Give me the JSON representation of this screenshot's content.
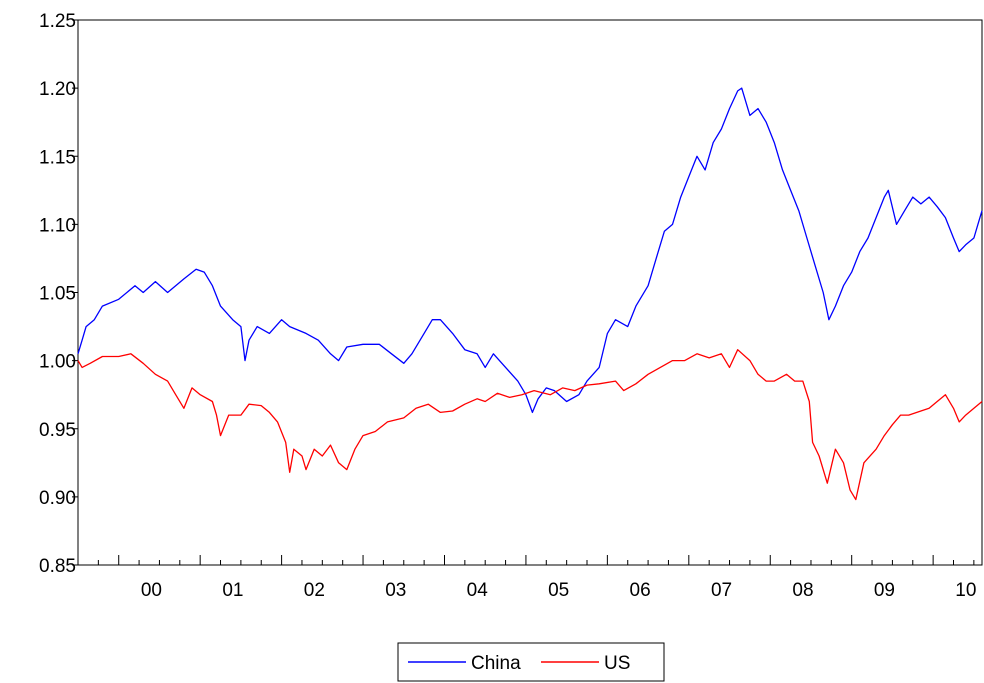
{
  "chart_data": {
    "type": "line",
    "title": "",
    "xlabel": "",
    "ylabel": "",
    "ylim": [
      0.85,
      1.25
    ],
    "yticks": [
      "0.85",
      "0.90",
      "0.95",
      "1.00",
      "1.05",
      "1.10",
      "1.15",
      "1.20",
      "1.25"
    ],
    "xlim": [
      1999.5,
      2010.6
    ],
    "xticks": [
      {
        "label": "00",
        "year": 2000
      },
      {
        "label": "01",
        "year": 2001
      },
      {
        "label": "02",
        "year": 2002
      },
      {
        "label": "03",
        "year": 2003
      },
      {
        "label": "04",
        "year": 2004
      },
      {
        "label": "05",
        "year": 2005
      },
      {
        "label": "06",
        "year": 2006
      },
      {
        "label": "07",
        "year": 2007
      },
      {
        "label": "08",
        "year": 2008
      },
      {
        "label": "09",
        "year": 2009
      },
      {
        "label": "10",
        "year": 2010
      }
    ],
    "legend_position": "bottom-center",
    "grid": false,
    "series": [
      {
        "name": "China",
        "color": "#0000ff",
        "points": [
          [
            1999.5,
            1.005
          ],
          [
            1999.55,
            1.015
          ],
          [
            1999.6,
            1.025
          ],
          [
            1999.7,
            1.03
          ],
          [
            1999.8,
            1.04
          ],
          [
            2000.0,
            1.045
          ],
          [
            2000.2,
            1.055
          ],
          [
            2000.3,
            1.05
          ],
          [
            2000.45,
            1.058
          ],
          [
            2000.6,
            1.05
          ],
          [
            2000.8,
            1.06
          ],
          [
            2000.95,
            1.067
          ],
          [
            2001.05,
            1.065
          ],
          [
            2001.15,
            1.055
          ],
          [
            2001.25,
            1.04
          ],
          [
            2001.4,
            1.03
          ],
          [
            2001.5,
            1.025
          ],
          [
            2001.55,
            1.0
          ],
          [
            2001.6,
            1.015
          ],
          [
            2001.7,
            1.025
          ],
          [
            2001.85,
            1.02
          ],
          [
            2002.0,
            1.03
          ],
          [
            2002.1,
            1.025
          ],
          [
            2002.3,
            1.02
          ],
          [
            2002.45,
            1.015
          ],
          [
            2002.6,
            1.005
          ],
          [
            2002.7,
            1.0
          ],
          [
            2002.8,
            1.01
          ],
          [
            2003.0,
            1.012
          ],
          [
            2003.2,
            1.012
          ],
          [
            2003.35,
            1.005
          ],
          [
            2003.5,
            0.998
          ],
          [
            2003.6,
            1.005
          ],
          [
            2003.75,
            1.02
          ],
          [
            2003.85,
            1.03
          ],
          [
            2003.95,
            1.03
          ],
          [
            2004.1,
            1.02
          ],
          [
            2004.25,
            1.008
          ],
          [
            2004.4,
            1.005
          ],
          [
            2004.5,
            0.995
          ],
          [
            2004.6,
            1.005
          ],
          [
            2004.75,
            0.995
          ],
          [
            2004.9,
            0.985
          ],
          [
            2005.0,
            0.975
          ],
          [
            2005.08,
            0.962
          ],
          [
            2005.15,
            0.972
          ],
          [
            2005.25,
            0.98
          ],
          [
            2005.35,
            0.978
          ],
          [
            2005.5,
            0.97
          ],
          [
            2005.65,
            0.975
          ],
          [
            2005.75,
            0.985
          ],
          [
            2005.9,
            0.995
          ],
          [
            2006.0,
            1.02
          ],
          [
            2006.1,
            1.03
          ],
          [
            2006.25,
            1.025
          ],
          [
            2006.35,
            1.04
          ],
          [
            2006.5,
            1.055
          ],
          [
            2006.6,
            1.075
          ],
          [
            2006.7,
            1.095
          ],
          [
            2006.8,
            1.1
          ],
          [
            2006.9,
            1.12
          ],
          [
            2007.0,
            1.135
          ],
          [
            2007.1,
            1.15
          ],
          [
            2007.2,
            1.14
          ],
          [
            2007.3,
            1.16
          ],
          [
            2007.4,
            1.17
          ],
          [
            2007.5,
            1.185
          ],
          [
            2007.6,
            1.198
          ],
          [
            2007.65,
            1.2
          ],
          [
            2007.75,
            1.18
          ],
          [
            2007.85,
            1.185
          ],
          [
            2007.95,
            1.175
          ],
          [
            2008.05,
            1.16
          ],
          [
            2008.15,
            1.14
          ],
          [
            2008.25,
            1.125
          ],
          [
            2008.35,
            1.11
          ],
          [
            2008.45,
            1.09
          ],
          [
            2008.55,
            1.07
          ],
          [
            2008.65,
            1.05
          ],
          [
            2008.72,
            1.03
          ],
          [
            2008.8,
            1.04
          ],
          [
            2008.9,
            1.055
          ],
          [
            2009.0,
            1.065
          ],
          [
            2009.1,
            1.08
          ],
          [
            2009.2,
            1.09
          ],
          [
            2009.3,
            1.105
          ],
          [
            2009.4,
            1.12
          ],
          [
            2009.45,
            1.125
          ],
          [
            2009.55,
            1.1
          ],
          [
            2009.65,
            1.11
          ],
          [
            2009.75,
            1.12
          ],
          [
            2009.85,
            1.115
          ],
          [
            2009.95,
            1.12
          ],
          [
            2010.05,
            1.113
          ],
          [
            2010.15,
            1.105
          ],
          [
            2010.25,
            1.09
          ],
          [
            2010.32,
            1.08
          ],
          [
            2010.4,
            1.085
          ],
          [
            2010.5,
            1.09
          ],
          [
            2010.55,
            1.1
          ],
          [
            2010.6,
            1.11
          ]
        ]
      },
      {
        "name": "US",
        "color": "#ff0000",
        "points": [
          [
            1999.5,
            1.0
          ],
          [
            1999.55,
            0.995
          ],
          [
            1999.65,
            0.998
          ],
          [
            1999.8,
            1.003
          ],
          [
            2000.0,
            1.003
          ],
          [
            2000.15,
            1.005
          ],
          [
            2000.3,
            0.998
          ],
          [
            2000.45,
            0.99
          ],
          [
            2000.6,
            0.985
          ],
          [
            2000.7,
            0.975
          ],
          [
            2000.8,
            0.965
          ],
          [
            2000.9,
            0.98
          ],
          [
            2001.0,
            0.975
          ],
          [
            2001.15,
            0.97
          ],
          [
            2001.2,
            0.96
          ],
          [
            2001.25,
            0.945
          ],
          [
            2001.35,
            0.96
          ],
          [
            2001.5,
            0.96
          ],
          [
            2001.6,
            0.968
          ],
          [
            2001.75,
            0.967
          ],
          [
            2001.85,
            0.962
          ],
          [
            2001.95,
            0.955
          ],
          [
            2002.05,
            0.94
          ],
          [
            2002.1,
            0.918
          ],
          [
            2002.15,
            0.935
          ],
          [
            2002.25,
            0.93
          ],
          [
            2002.3,
            0.92
          ],
          [
            2002.4,
            0.935
          ],
          [
            2002.5,
            0.93
          ],
          [
            2002.6,
            0.938
          ],
          [
            2002.7,
            0.925
          ],
          [
            2002.8,
            0.92
          ],
          [
            2002.9,
            0.935
          ],
          [
            2003.0,
            0.945
          ],
          [
            2003.15,
            0.948
          ],
          [
            2003.3,
            0.955
          ],
          [
            2003.5,
            0.958
          ],
          [
            2003.65,
            0.965
          ],
          [
            2003.8,
            0.968
          ],
          [
            2003.95,
            0.962
          ],
          [
            2004.1,
            0.963
          ],
          [
            2004.25,
            0.968
          ],
          [
            2004.4,
            0.972
          ],
          [
            2004.5,
            0.97
          ],
          [
            2004.65,
            0.976
          ],
          [
            2004.8,
            0.973
          ],
          [
            2004.95,
            0.975
          ],
          [
            2005.1,
            0.978
          ],
          [
            2005.3,
            0.975
          ],
          [
            2005.45,
            0.98
          ],
          [
            2005.6,
            0.978
          ],
          [
            2005.75,
            0.982
          ],
          [
            2005.9,
            0.983
          ],
          [
            2006.1,
            0.985
          ],
          [
            2006.2,
            0.978
          ],
          [
            2006.35,
            0.983
          ],
          [
            2006.5,
            0.99
          ],
          [
            2006.65,
            0.995
          ],
          [
            2006.8,
            1.0
          ],
          [
            2006.95,
            1.0
          ],
          [
            2007.1,
            1.005
          ],
          [
            2007.25,
            1.002
          ],
          [
            2007.4,
            1.005
          ],
          [
            2007.5,
            0.995
          ],
          [
            2007.6,
            1.008
          ],
          [
            2007.75,
            1.0
          ],
          [
            2007.85,
            0.99
          ],
          [
            2007.95,
            0.985
          ],
          [
            2008.05,
            0.985
          ],
          [
            2008.2,
            0.99
          ],
          [
            2008.3,
            0.985
          ],
          [
            2008.4,
            0.985
          ],
          [
            2008.48,
            0.97
          ],
          [
            2008.52,
            0.94
          ],
          [
            2008.6,
            0.93
          ],
          [
            2008.7,
            0.91
          ],
          [
            2008.8,
            0.935
          ],
          [
            2008.9,
            0.925
          ],
          [
            2008.98,
            0.905
          ],
          [
            2009.05,
            0.898
          ],
          [
            2009.15,
            0.925
          ],
          [
            2009.3,
            0.935
          ],
          [
            2009.4,
            0.945
          ],
          [
            2009.5,
            0.953
          ],
          [
            2009.6,
            0.96
          ],
          [
            2009.7,
            0.96
          ],
          [
            2009.85,
            0.963
          ],
          [
            2009.95,
            0.965
          ],
          [
            2010.05,
            0.97
          ],
          [
            2010.15,
            0.975
          ],
          [
            2010.25,
            0.965
          ],
          [
            2010.32,
            0.955
          ],
          [
            2010.4,
            0.96
          ],
          [
            2010.5,
            0.965
          ],
          [
            2010.6,
            0.97
          ]
        ]
      }
    ]
  }
}
